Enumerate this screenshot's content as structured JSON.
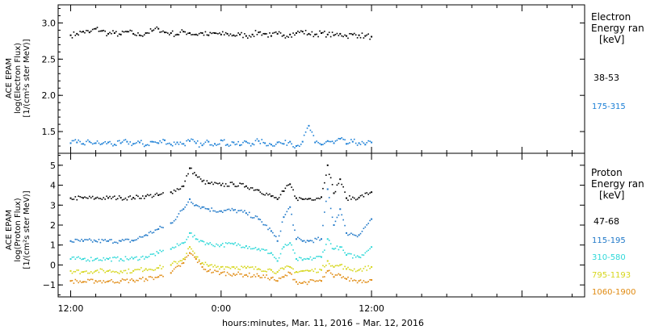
{
  "colors": {
    "black": "#000000",
    "e_175_315": "#1a7fd6",
    "p_115_195": "#1f78c8",
    "p_310_580": "#2ed8d8",
    "p_795_1193": "#d6d61a",
    "p_1060_1900": "#e08a10"
  },
  "chart_data": [
    {
      "type": "scatter",
      "panel": "electron",
      "ylabel_lines": [
        "ACE EPAM",
        "log(Electron Flux)",
        "[1/(cm²s ster MeV)]"
      ],
      "legend_lines": [
        "Electron",
        "Energy ran",
        "[keV]"
      ],
      "ylim": [
        1.2,
        3.25
      ],
      "yticks": [
        1.5,
        2.0,
        2.5,
        3.0
      ],
      "ytick_labels": [
        "1.5",
        "2.0",
        "2.5",
        "3.0"
      ],
      "series": [
        {
          "name": "38-53",
          "color_key": "black",
          "x": [
            0,
            0.5,
            1,
            1.5,
            2,
            2.5,
            3,
            3.5,
            4,
            4.5,
            5,
            5.5,
            6,
            6.5,
            7,
            7.5,
            8,
            8.5,
            9,
            9.5,
            10,
            10.5,
            11,
            11.5,
            12,
            12.5,
            13,
            13.5,
            14,
            14.5,
            15,
            15.5,
            16,
            16.5,
            17,
            17.5,
            18,
            18.5,
            19,
            19.5,
            20,
            20.5,
            21,
            21.5,
            22,
            22.5,
            23,
            23.5,
            24
          ],
          "y": [
            2.83,
            2.85,
            2.88,
            2.87,
            2.92,
            2.89,
            2.85,
            2.86,
            2.84,
            2.88,
            2.85,
            2.83,
            2.86,
            2.89,
            2.92,
            2.87,
            2.86,
            2.84,
            2.88,
            2.86,
            2.84,
            2.86,
            2.83,
            2.86,
            2.84,
            2.85,
            2.83,
            2.84,
            2.82,
            2.84,
            2.87,
            2.85,
            2.82,
            2.85,
            2.83,
            2.84,
            2.86,
            2.88,
            2.85,
            2.84,
            2.86,
            2.84,
            2.83,
            2.85,
            2.82,
            2.84,
            2.83,
            2.82,
            2.81
          ]
        },
        {
          "name": "175-315",
          "color_key": "e_175_315",
          "x": [
            0,
            0.5,
            1,
            1.5,
            2,
            2.5,
            3,
            3.5,
            4,
            4.5,
            5,
            5.5,
            6,
            6.5,
            7,
            7.5,
            8,
            8.5,
            9,
            9.5,
            10,
            10.5,
            11,
            11.5,
            12,
            12.5,
            13,
            13.5,
            14,
            14.5,
            15,
            15.5,
            16,
            16.5,
            17,
            17.5,
            18,
            18.5,
            19,
            19.5,
            20,
            20.5,
            21,
            21.5,
            22,
            22.5,
            23,
            23.5,
            24
          ],
          "y": [
            1.34,
            1.35,
            1.33,
            1.36,
            1.34,
            1.33,
            1.35,
            1.32,
            1.34,
            1.36,
            1.33,
            1.35,
            1.31,
            1.36,
            1.34,
            1.38,
            1.32,
            1.35,
            1.33,
            1.37,
            1.34,
            1.31,
            1.36,
            1.33,
            1.38,
            1.32,
            1.35,
            1.31,
            1.36,
            1.33,
            1.37,
            1.34,
            1.32,
            1.35,
            1.33,
            1.36,
            1.3,
            1.36,
            1.58,
            1.35,
            1.32,
            1.37,
            1.34,
            1.4,
            1.33,
            1.36,
            1.34,
            1.32,
            1.35
          ]
        }
      ]
    },
    {
      "type": "scatter",
      "panel": "proton",
      "ylabel_lines": [
        "ACE EPAM",
        "log(Proton Flux)",
        "[1/(cm²s ster MeV)]"
      ],
      "legend_lines": [
        "Proton",
        "Energy ran",
        "[keV]"
      ],
      "ylim": [
        -1.6,
        5.6
      ],
      "yticks": [
        -1,
        0,
        1,
        2,
        3,
        4,
        5
      ],
      "ytick_labels": [
        "−1",
        "0",
        "1",
        "2",
        "3",
        "4",
        "5"
      ],
      "xaxis_label": "hours:minutes, Mar. 11, 2016 – Mar. 12, 2016",
      "xlim": [
        -1,
        41
      ],
      "xticks": [
        0,
        12,
        24,
        36
      ],
      "xtick_labels": [
        "12:00",
        "0:00",
        "12:00",
        ""
      ],
      "series": [
        {
          "name": "47-68",
          "color_key": "black",
          "x": [
            0,
            1,
            2,
            3,
            4,
            5,
            6,
            7,
            8,
            9,
            9.5,
            10,
            10.5,
            11,
            12,
            13,
            14,
            15,
            16,
            16.5,
            17,
            17.5,
            18,
            18.5,
            19,
            20,
            20.5,
            21,
            21.5,
            22,
            23,
            24
          ],
          "y": [
            3.35,
            3.36,
            3.35,
            3.36,
            3.37,
            3.37,
            3.45,
            3.5,
            3.65,
            3.95,
            4.85,
            4.5,
            4.2,
            4.1,
            4.0,
            4.05,
            3.95,
            3.75,
            3.45,
            3.3,
            3.7,
            4.05,
            3.35,
            3.3,
            3.32,
            3.4,
            5.0,
            3.6,
            4.3,
            3.35,
            3.38,
            3.65
          ]
        },
        {
          "name": "115-195",
          "color_key": "p_115_195",
          "x": [
            0,
            1,
            2,
            3,
            4,
            5,
            6,
            7,
            8,
            9,
            9.5,
            10,
            10.5,
            11,
            12,
            13,
            14,
            15,
            16,
            16.5,
            17,
            17.5,
            18,
            18.5,
            19,
            20,
            20.5,
            21,
            21.5,
            22,
            23,
            24
          ],
          "y": [
            1.2,
            1.2,
            1.2,
            1.2,
            1.2,
            1.22,
            1.5,
            1.8,
            2.1,
            2.8,
            3.3,
            3.0,
            2.9,
            2.8,
            2.7,
            2.75,
            2.6,
            2.3,
            1.7,
            1.2,
            2.4,
            2.9,
            1.3,
            1.2,
            1.2,
            1.3,
            3.8,
            2.0,
            2.8,
            1.6,
            1.5,
            2.3
          ]
        },
        {
          "name": "310-580",
          "color_key": "p_310_580",
          "x": [
            0,
            1,
            2,
            3,
            4,
            5,
            6,
            7,
            8,
            9,
            9.5,
            10,
            10.5,
            11,
            12,
            13,
            14,
            15,
            16,
            16.5,
            17,
            17.5,
            18,
            18.5,
            19,
            20,
            20.5,
            21,
            21.5,
            22,
            23,
            24
          ],
          "y": [
            0.3,
            0.3,
            0.3,
            0.3,
            0.3,
            0.32,
            0.4,
            0.6,
            0.8,
            1.1,
            1.6,
            1.3,
            1.2,
            1.05,
            1.0,
            1.05,
            0.95,
            0.8,
            0.6,
            0.2,
            0.9,
            1.1,
            0.3,
            0.25,
            0.3,
            0.4,
            1.3,
            0.8,
            0.9,
            0.5,
            0.4,
            0.9
          ]
        },
        {
          "name": "795-1193",
          "color_key": "p_795_1193",
          "x": [
            0,
            1,
            2,
            3,
            4,
            5,
            6,
            7,
            8,
            9,
            9.5,
            10,
            10.5,
            11,
            12,
            13,
            14,
            15,
            16,
            16.5,
            17,
            17.5,
            18,
            18.5,
            19,
            20,
            20.5,
            21,
            21.5,
            22,
            23,
            24
          ],
          "y": [
            -0.3,
            -0.35,
            -0.3,
            -0.3,
            -0.32,
            -0.3,
            -0.2,
            -0.15,
            0.0,
            0.3,
            0.9,
            0.4,
            0.1,
            -0.05,
            -0.1,
            -0.1,
            -0.15,
            -0.2,
            -0.25,
            -0.35,
            -0.2,
            -0.1,
            -0.35,
            -0.3,
            -0.3,
            -0.25,
            0.2,
            -0.1,
            0.0,
            -0.2,
            -0.25,
            -0.1
          ]
        },
        {
          "name": "1060-1900",
          "color_key": "p_1060_1900",
          "x": [
            0,
            1,
            2,
            3,
            4,
            5,
            6,
            7,
            8,
            9,
            9.5,
            10,
            10.5,
            11,
            12,
            13,
            14,
            15,
            16,
            16.5,
            17,
            17.5,
            18,
            18.5,
            19,
            20,
            20.5,
            21,
            21.5,
            22,
            23,
            24
          ],
          "y": [
            -0.8,
            -0.85,
            -0.8,
            -0.82,
            -0.8,
            -0.78,
            -0.7,
            -0.6,
            -0.4,
            0.1,
            0.6,
            0.3,
            -0.1,
            -0.3,
            -0.4,
            -0.45,
            -0.5,
            -0.55,
            -0.65,
            -0.8,
            -0.6,
            -0.4,
            -0.85,
            -0.9,
            -0.85,
            -0.8,
            -0.3,
            -0.6,
            -0.5,
            -0.7,
            -0.8,
            -0.75
          ]
        }
      ]
    }
  ]
}
